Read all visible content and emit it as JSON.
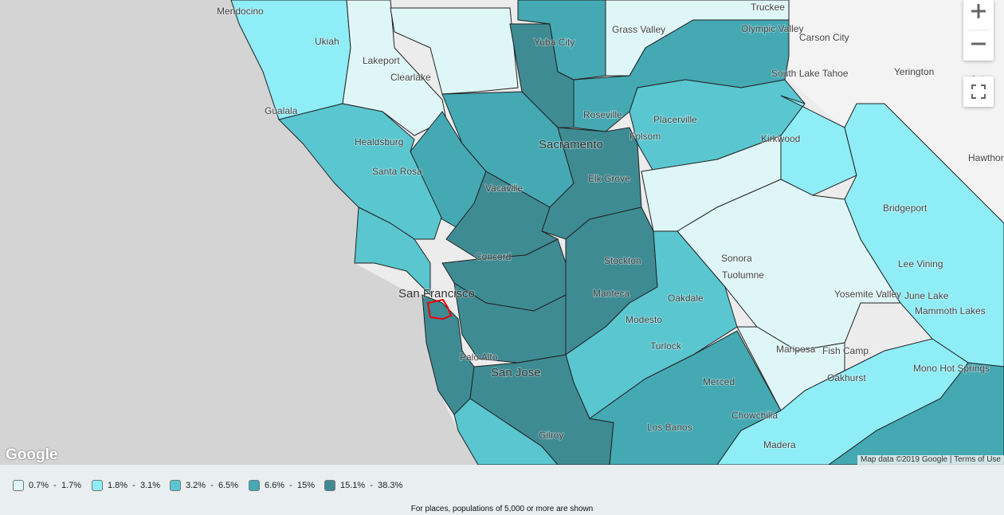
{
  "map": {
    "labels": [
      "Mendocino",
      "Ukiah",
      "Lakeport",
      "Clearlake",
      "Gualala",
      "Yuba City",
      "Grass Valley",
      "Truckee",
      "Olympic Valley",
      "Carson City",
      "Fall",
      "Yerington",
      "Sch",
      "South Lake Tahoe",
      "Roseville",
      "Placerville",
      "Sacramento",
      "Folsom",
      "Kirkwood",
      "Hawthorn",
      "Healdsburg",
      "Santa Rosa",
      "Vacaville",
      "Elk Grove",
      "Bridgeport",
      "Concord",
      "Stockton",
      "Sonora",
      "Tuolumne",
      "Lee Vining",
      "San Francisco",
      "Manteca",
      "Oakdale",
      "Yosemite Valley",
      "June Lake",
      "Mammoth Lakes",
      "Modesto",
      "Turlock",
      "Mariposa",
      "Fish Camp",
      "Palo Alto",
      "San Jose",
      "Oakhurst",
      "Mono Hot Springs",
      "Merced",
      "Chowchilla",
      "Los Banos",
      "Gilroy",
      "Madera"
    ],
    "logo": "Google",
    "attribution": "Map data ©2019 Google",
    "terms": "Terms of Use"
  },
  "legend": {
    "items": [
      {
        "label": "0.7%  -  1.7%",
        "color": "#dff6f8"
      },
      {
        "label": "1.8%  -  3.1%",
        "color": "#8eedf7"
      },
      {
        "label": "3.2%  -  6.5%",
        "color": "#5ac6d0"
      },
      {
        "label": "6.6%  -  15%",
        "color": "#44a9b3"
      },
      {
        "label": "15.1%  -  38.3%",
        "color": "#3e8b93"
      }
    ],
    "note": "For places, populations of 5,000 or more are shown"
  }
}
